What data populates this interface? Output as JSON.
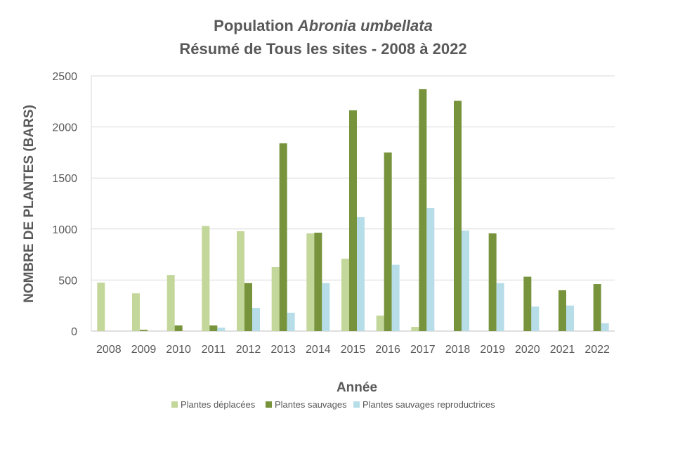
{
  "chart_data": {
    "type": "bar",
    "title": {
      "prefix": "Population ",
      "italic": "Abronia umbellata",
      "line2": "Résumé de Tous les sites - 2008 à 2022"
    },
    "xlabel": "Année",
    "ylabel": "NOMBRE DE PLANTES (BARS)",
    "ylim": [
      0,
      2500
    ],
    "yticks": [
      0,
      500,
      1000,
      1500,
      2000,
      2500
    ],
    "grid": true,
    "legend_placement": "bottom",
    "categories": [
      "2008",
      "2009",
      "2010",
      "2011",
      "2012",
      "2013",
      "2014",
      "2015",
      "2016",
      "2017",
      "2018",
      "2019",
      "2020",
      "2021",
      "2022"
    ],
    "series": [
      {
        "name": "Plantes déplacées",
        "color": "#c4d79b",
        "values": [
          475,
          370,
          550,
          1030,
          978,
          627,
          957,
          709,
          152,
          41,
          0,
          0,
          0,
          0,
          0
        ]
      },
      {
        "name": "Plantes sauvages",
        "color": "#77933c",
        "values": [
          0,
          12,
          55,
          55,
          470,
          1840,
          964,
          2163,
          1750,
          2370,
          2256,
          957,
          533,
          400,
          461
        ]
      },
      {
        "name": "Plantes sauvages reproductrices",
        "color": "#b7dee8",
        "values": [
          0,
          0,
          0,
          34,
          227,
          180,
          470,
          1116,
          650,
          1205,
          985,
          470,
          240,
          250,
          77
        ]
      }
    ]
  }
}
